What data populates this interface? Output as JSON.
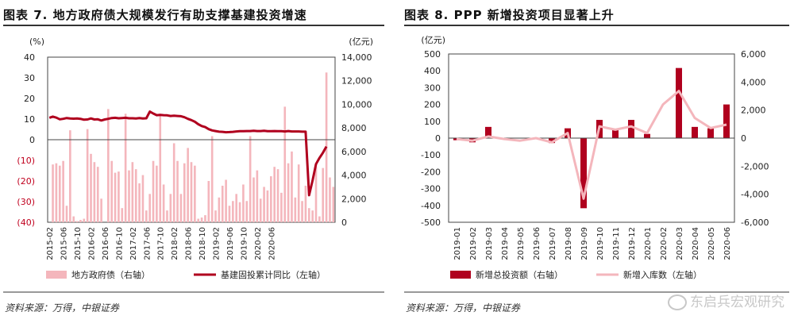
{
  "left": {
    "title": "图表 7. 地方政府债大规模发行有助支撑基建投资增速",
    "source": "资料来源：万得，中银证券"
  },
  "right": {
    "title": "图表 8. PPP 新增投资项目显著上升",
    "source": "资料来源：万得，中银证券"
  },
  "watermark": "东启兵宏观研究",
  "colors": {
    "dark_red": "#b0001e",
    "pink": "#f4b6bc"
  },
  "chart_data": [
    {
      "type": "bar+line",
      "left_axis_unit": "(%)",
      "right_axis_unit": "(亿元)",
      "ylim_left": [
        -40,
        40
      ],
      "ylim_right": [
        0,
        14000
      ],
      "yticks_left": [
        "40",
        "30",
        "20",
        "10",
        "0",
        "(10)",
        "(20)",
        "(30)",
        "(40)"
      ],
      "yticks_right": [
        "14,000",
        "12,000",
        "10,000",
        "8,000",
        "6,000",
        "4,000",
        "2,000",
        "0"
      ],
      "xticks": [
        "2015-02",
        "2015-06",
        "2015-10",
        "2016-02",
        "2016-06",
        "2016-10",
        "2017-02",
        "2017-06",
        "2017-10",
        "2018-02",
        "2018-06",
        "2018-10",
        "2019-02",
        "2019-06",
        "2019-10",
        "2020-02",
        "2020-06"
      ],
      "series": [
        {
          "name": "地方政府债（右轴）",
          "kind": "bar",
          "axis": "right",
          "color": "#f4b6bc",
          "values": [
            0,
            4900,
            5000,
            4800,
            5200,
            1400,
            7800,
            500,
            100,
            200,
            300,
            7900,
            5800,
            5100,
            4700,
            2000,
            0,
            9600,
            5200,
            4200,
            4300,
            1200,
            9200,
            4400,
            5100,
            4500,
            3300,
            4000,
            1000,
            2400,
            5200,
            4800,
            9200,
            3200,
            1000,
            2400,
            6700,
            5200,
            2400,
            5000,
            6300,
            5100,
            4800,
            300,
            400,
            600,
            3500,
            7300,
            1000,
            2100,
            3100,
            3600,
            1400,
            1800,
            2400,
            1700,
            3200,
            1800,
            7300,
            3800,
            4400,
            2000,
            3000,
            2700,
            3900,
            4700,
            4500,
            2500,
            9800,
            5000,
            6000,
            2100,
            4900,
            1800,
            3100,
            1200,
            1000,
            4700,
            500,
            4600,
            12700,
            3800,
            3000
          ]
        },
        {
          "name": "基建固投累计同比（左轴）",
          "kind": "line",
          "axis": "left",
          "color": "#b0001e",
          "values": [
            10.6,
            11.2,
            10.7,
            9.9,
            10.1,
            10.5,
            10.3,
            10.2,
            10.3,
            10.1,
            9.7,
            9.8,
            10.3,
            9.8,
            9.9,
            9.3,
            9.8,
            10.1,
            10.5,
            10.6,
            10.4,
            10.5,
            10.6,
            10.4,
            10.4,
            10.3,
            10.5,
            10.3,
            10.4,
            13.6,
            12.7,
            11.9,
            12.0,
            11.9,
            11.8,
            11.5,
            11.6,
            11.5,
            11.4,
            10.9,
            10.1,
            9.5,
            8.7,
            7.5,
            6.6,
            6.1,
            5.1,
            4.5,
            4.2,
            3.9,
            3.8,
            3.6,
            3.7,
            3.8,
            4.0,
            4.1,
            4.1,
            4.2,
            4.2,
            4.3,
            4.2,
            4.2,
            4.3,
            4.1,
            4.1,
            4.2,
            4.1,
            4.1,
            4.0,
            4.2,
            4.0,
            4.0,
            4.0,
            3.9,
            3.9,
            -26.9,
            -19.7,
            -11.8,
            -8.8,
            -6.3,
            -3.3
          ]
        }
      ]
    },
    {
      "type": "bar+line",
      "left_axis_unit": "(亿元)",
      "ylim_left": [
        -500,
        500
      ],
      "ylim_right": [
        -6000,
        6000
      ],
      "yticks_left": [
        "500",
        "400",
        "300",
        "200",
        "100",
        "0",
        "-100",
        "-200",
        "-300",
        "-400",
        "-500"
      ],
      "yticks_right": [
        "6,000",
        "4,000",
        "2,000",
        "0",
        "-2,000",
        "-4,000",
        "-6,000"
      ],
      "x": [
        "2019-01",
        "2019-02",
        "2019-03",
        "2019-04",
        "2019-05",
        "2019-06",
        "2019-07",
        "2019-08",
        "2019-09",
        "2019-10",
        "2019-11",
        "2019-12",
        "2020-01",
        "2020-02",
        "2020-03",
        "2020-04",
        "2020-05",
        "2020-06"
      ],
      "series": [
        {
          "name": "新增总投资额（右轴）",
          "kind": "bar",
          "axis": "right",
          "color": "#b0001e",
          "values": [
            -150,
            -300,
            800,
            0,
            0,
            0,
            -350,
            700,
            -5000,
            1300,
            600,
            1300,
            300,
            0,
            5000,
            800,
            700,
            2400
          ]
        },
        {
          "name": "新增入库数（左轴）",
          "kind": "line",
          "axis": "left",
          "color": "#f4b6bc",
          "values": [
            -5,
            -15,
            10,
            -5,
            -15,
            0,
            -25,
            30,
            -360,
            70,
            50,
            70,
            30,
            200,
            280,
            120,
            60,
            80
          ]
        }
      ]
    }
  ]
}
